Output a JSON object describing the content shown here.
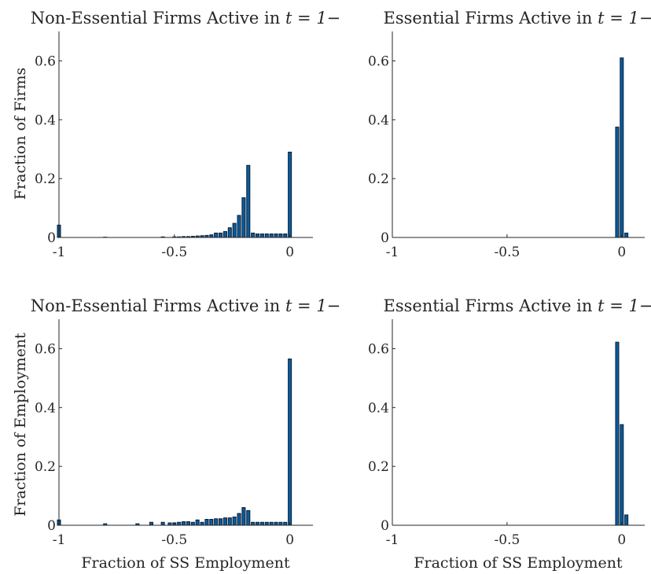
{
  "figure": {
    "panels": [
      {
        "title_prefix": "Non-Essential Firms Active in",
        "title_math": "t = 1−",
        "ylabel": "Fraction of Firms",
        "xlabel": ""
      },
      {
        "title_prefix": "Essential Firms Active in",
        "title_math": "t = 1−",
        "ylabel": "",
        "xlabel": ""
      },
      {
        "title_prefix": "Non-Essential Firms Active in",
        "title_math": "t = 1−",
        "ylabel": "Fraction of Employment",
        "xlabel": "Fraction of SS Employment"
      },
      {
        "title_prefix": "Essential Firms Active in",
        "title_math": "t = 1−",
        "ylabel": "",
        "xlabel": "Fraction of SS Employment"
      }
    ]
  },
  "chart_data": [
    {
      "type": "bar",
      "title": "Non-Essential Firms Active in t = 1−",
      "ylabel": "Fraction of Firms",
      "xlabel": "",
      "xlim": [
        -1,
        0.1
      ],
      "ylim": [
        0,
        0.7
      ],
      "xticks": [
        -1,
        -0.5,
        0
      ],
      "xtick_labels": [
        "-1",
        "-0.5",
        "0"
      ],
      "yticks": [
        0,
        0.2,
        0.4,
        0.6
      ],
      "ytick_labels": [
        "0",
        "0.2",
        "0.4",
        "0.6"
      ],
      "x": [
        -1,
        -0.8,
        -0.55,
        -0.5,
        -0.48,
        -0.46,
        -0.44,
        -0.42,
        -0.4,
        -0.38,
        -0.36,
        -0.34,
        -0.32,
        -0.3,
        -0.28,
        -0.26,
        -0.24,
        -0.22,
        -0.2,
        -0.18,
        -0.16,
        -0.14,
        -0.12,
        -0.1,
        -0.08,
        -0.06,
        -0.04,
        -0.02,
        0
      ],
      "values": [
        0.042,
        0.001,
        0.002,
        0.002,
        0.002,
        0.003,
        0.003,
        0.004,
        0.005,
        0.006,
        0.007,
        0.009,
        0.015,
        0.015,
        0.02,
        0.033,
        0.048,
        0.075,
        0.135,
        0.245,
        0.015,
        0.012,
        0.012,
        0.012,
        0.012,
        0.012,
        0.012,
        0.012,
        0.29
      ]
    },
    {
      "type": "bar",
      "title": "Essential Firms Active in t = 1−",
      "ylabel": "",
      "xlabel": "",
      "xlim": [
        -1,
        0.1
      ],
      "ylim": [
        0,
        0.7
      ],
      "xticks": [
        -1,
        -0.5,
        0
      ],
      "xtick_labels": [
        "-1",
        "-0.5",
        "0"
      ],
      "yticks": [
        0,
        0.2,
        0.4,
        0.6
      ],
      "ytick_labels": [
        "0",
        "0.2",
        "0.4",
        "0.6"
      ],
      "x": [
        -0.02,
        0,
        0.02
      ],
      "values": [
        0.375,
        0.61,
        0.015
      ]
    },
    {
      "type": "bar",
      "title": "Non-Essential Firms Active in t = 1−",
      "ylabel": "Fraction of Employment",
      "xlabel": "Fraction of SS Employment",
      "xlim": [
        -1,
        0.1
      ],
      "ylim": [
        0,
        0.7
      ],
      "xticks": [
        -1,
        -0.5,
        0
      ],
      "xtick_labels": [
        "-1",
        "-0.5",
        "0"
      ],
      "yticks": [
        0,
        0.2,
        0.4,
        0.6
      ],
      "ytick_labels": [
        "0",
        "0.2",
        "0.4",
        "0.6"
      ],
      "x": [
        -1,
        -0.8,
        -0.66,
        -0.6,
        -0.55,
        -0.52,
        -0.5,
        -0.48,
        -0.46,
        -0.44,
        -0.42,
        -0.4,
        -0.38,
        -0.36,
        -0.34,
        -0.32,
        -0.3,
        -0.28,
        -0.26,
        -0.24,
        -0.22,
        -0.2,
        -0.18,
        -0.16,
        -0.14,
        -0.12,
        -0.1,
        -0.08,
        -0.06,
        -0.04,
        -0.02,
        0
      ],
      "values": [
        0.018,
        0.005,
        0.005,
        0.01,
        0.01,
        0.008,
        0.008,
        0.01,
        0.012,
        0.012,
        0.01,
        0.018,
        0.01,
        0.02,
        0.02,
        0.022,
        0.022,
        0.025,
        0.025,
        0.028,
        0.04,
        0.06,
        0.05,
        0.01,
        0.01,
        0.01,
        0.01,
        0.01,
        0.01,
        0.01,
        0.01,
        0.565
      ]
    },
    {
      "type": "bar",
      "title": "Essential Firms Active in t = 1−",
      "ylabel": "",
      "xlabel": "Fraction of SS Employment",
      "xlim": [
        -1,
        0.1
      ],
      "ylim": [
        0,
        0.7
      ],
      "xticks": [
        -1,
        -0.5,
        0
      ],
      "xtick_labels": [
        "-1",
        "-0.5",
        "0"
      ],
      "yticks": [
        0,
        0.2,
        0.4,
        0.6
      ],
      "ytick_labels": [
        "0",
        "0.2",
        "0.4",
        "0.6"
      ],
      "x": [
        -0.02,
        0,
        0.02
      ],
      "values": [
        0.622,
        0.342,
        0.035
      ]
    }
  ]
}
